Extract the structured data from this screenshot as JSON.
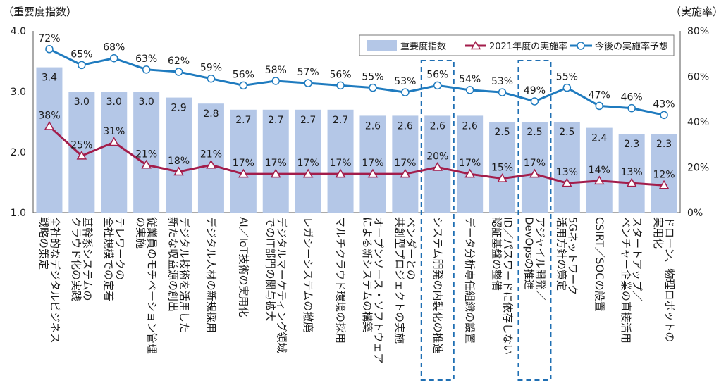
{
  "chart_data": {
    "type": "bar+line",
    "left_axis_title": "（重要度指数）",
    "right_axis_title": "（実施率）",
    "left_ticks": [
      "4.0",
      "3.0",
      "2.0",
      "1.0"
    ],
    "right_ticks": [
      "80%",
      "60%",
      "40%",
      "20%",
      "0%"
    ],
    "ylim_left": [
      1.0,
      4.0
    ],
    "ylim_right": [
      0,
      80
    ],
    "legend_position": "top-right",
    "legend": {
      "bars": "重要度指数",
      "line_2021": "2021年度の実施率",
      "line_future": "今後の実施率予想"
    },
    "colors": {
      "bar": "#b4c7e7",
      "line_2021": "#a31d4b",
      "line_future": "#1f7bbf",
      "highlight_box": "#1f6fb3"
    },
    "categories": [
      [
        "全社的なデジタルビジネス",
        "戦略の策定"
      ],
      [
        "基幹系システムの",
        "クラウド化の実践"
      ],
      [
        "テレワークの",
        "全社規模での定着"
      ],
      [
        "従業員のモチベーション管理",
        "の実施"
      ],
      [
        "デジタル技術を活用した",
        "新たな収益源の創出"
      ],
      [
        "デジタル人材の新規採用"
      ],
      [
        "AI／IoT技術の実用化"
      ],
      [
        "デジタルマーケティング領域",
        "でのIT部門の関与拡大"
      ],
      [
        "レガシーシステムの撤廃"
      ],
      [
        "マルチクラウド環境の採用"
      ],
      [
        "オープンソース・ソフトウェア",
        "による新システムの構築"
      ],
      [
        "ベンダーとの",
        "共創型プロジェクトの実施"
      ],
      [
        "システム開発の内製化の推進"
      ],
      [
        "データ分析専任組織の設置"
      ],
      [
        "ID／パスワードに依存しない",
        "認証基盤の整備"
      ],
      [
        "アジャイル開発／",
        "DevOpsの推進"
      ],
      [
        "5Gネットワーク",
        "活用方針の策定"
      ],
      [
        "CSIRT／SOCの設置"
      ],
      [
        "スタートアップ／",
        "ベンチャー企業の直接活用"
      ],
      [
        "ドローン、物理ロボットの",
        "実用化"
      ]
    ],
    "importance": [
      3.4,
      3.0,
      3.0,
      3.0,
      2.9,
      2.8,
      2.7,
      2.7,
      2.7,
      2.7,
      2.6,
      2.6,
      2.6,
      2.6,
      2.5,
      2.5,
      2.5,
      2.4,
      2.3,
      2.3
    ],
    "importance_labels": [
      "3.4",
      "3.0",
      "3.0",
      "3.0",
      "2.9",
      "2.8",
      "2.7",
      "2.7",
      "2.7",
      "2.7",
      "2.6",
      "2.6",
      "2.6",
      "2.6",
      "2.5",
      "2.5",
      "2.5",
      "2.4",
      "2.3",
      "2.3"
    ],
    "rate_2021": [
      38,
      25,
      31,
      21,
      18,
      21,
      17,
      17,
      17,
      17,
      17,
      17,
      20,
      17,
      15,
      17,
      13,
      14,
      13,
      12
    ],
    "rate_2021_labels": [
      "38%",
      "25%",
      "31%",
      "21%",
      "18%",
      "21%",
      "17%",
      "17%",
      "17%",
      "17%",
      "17%",
      "17%",
      "20%",
      "17%",
      "15%",
      "17%",
      "13%",
      "14%",
      "13%",
      "12%"
    ],
    "rate_future": [
      72,
      65,
      68,
      63,
      62,
      59,
      56,
      58,
      57,
      56,
      55,
      53,
      56,
      54,
      53,
      49,
      55,
      47,
      46,
      43
    ],
    "rate_future_labels": [
      "72%",
      "65%",
      "68%",
      "63%",
      "62%",
      "59%",
      "56%",
      "58%",
      "57%",
      "56%",
      "55%",
      "53%",
      "56%",
      "54%",
      "53%",
      "49%",
      "55%",
      "47%",
      "46%",
      "43%"
    ],
    "highlighted_indices": [
      12,
      15
    ]
  }
}
